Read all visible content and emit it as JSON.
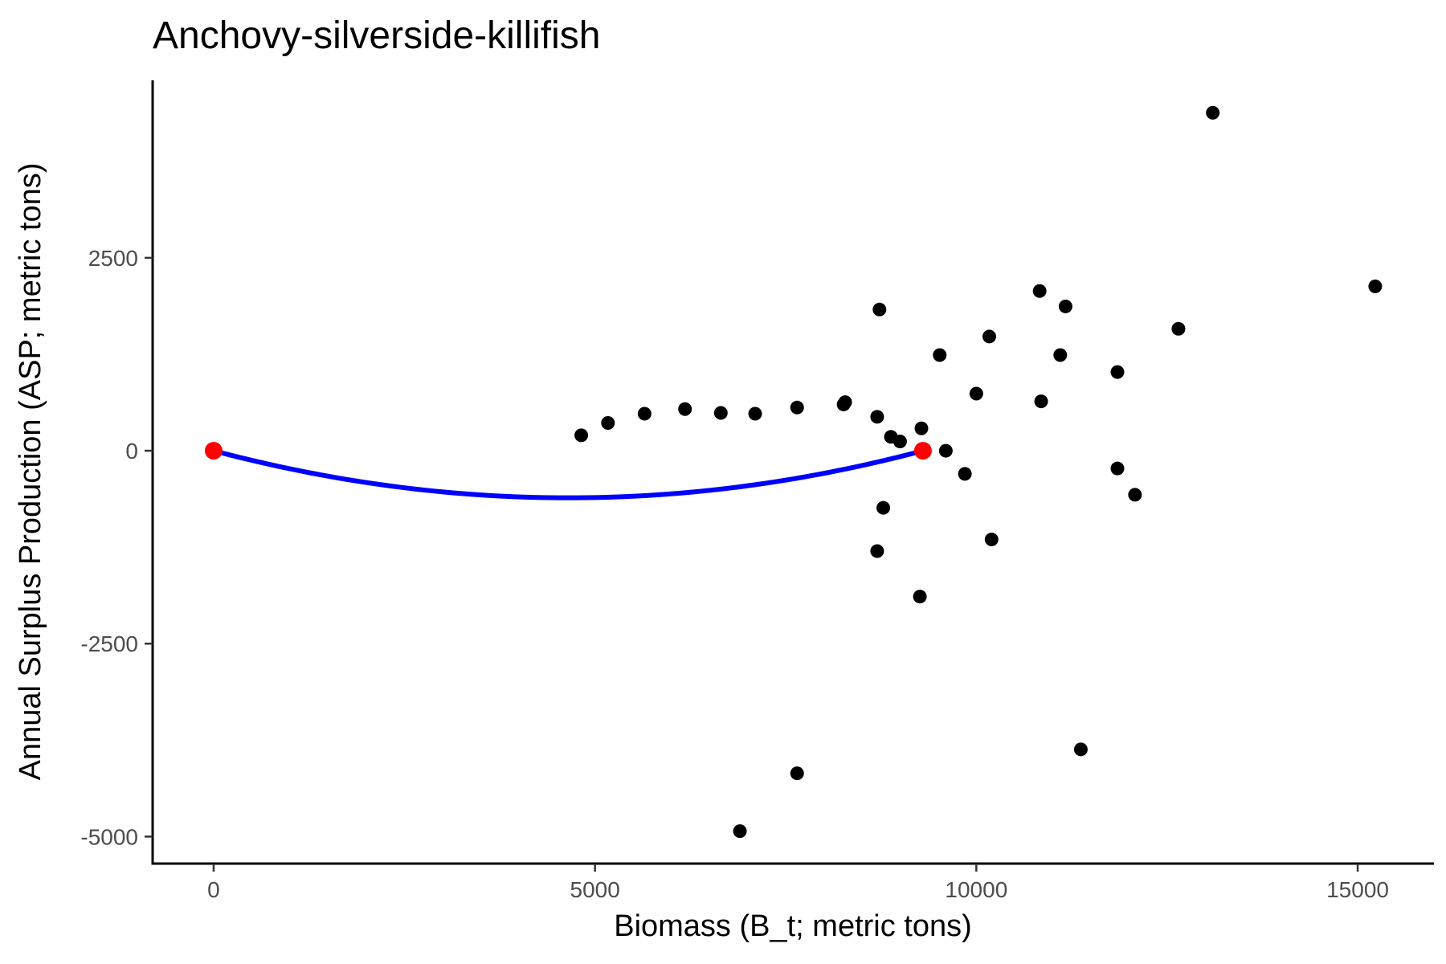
{
  "chart_data": {
    "type": "scatter",
    "title": "Anchovy-silverside-killifish",
    "xlabel": "Biomass (B_t; metric tons)",
    "ylabel": "Annual Surplus Production (ASP; metric tons)",
    "xlim": [
      -800,
      16000
    ],
    "ylim": [
      -5350,
      4800
    ],
    "x_ticks": [
      0,
      5000,
      10000,
      15000
    ],
    "x_tick_labels": [
      "0",
      "5000",
      "10000",
      "15000"
    ],
    "y_ticks": [
      -5000,
      -2500,
      0,
      2500
    ],
    "y_tick_labels": [
      "-5000",
      "-2500",
      "0",
      "2500"
    ],
    "grid": false,
    "colors": {
      "points": "#000000",
      "curve": "#0000ff",
      "endpoints": "#ff0000"
    },
    "points": [
      [
        4820,
        200
      ],
      [
        5170,
        360
      ],
      [
        5650,
        480
      ],
      [
        6180,
        540
      ],
      [
        6650,
        490
      ],
      [
        7100,
        480
      ],
      [
        7650,
        560
      ],
      [
        8260,
        600
      ],
      [
        8280,
        630
      ],
      [
        8700,
        440
      ],
      [
        8730,
        1830
      ],
      [
        8780,
        -740
      ],
      [
        8700,
        -1300
      ],
      [
        8880,
        180
      ],
      [
        9000,
        120
      ],
      [
        9280,
        290
      ],
      [
        9260,
        -1890
      ],
      [
        9600,
        0
      ],
      [
        9520,
        1240
      ],
      [
        9850,
        -300
      ],
      [
        10000,
        740
      ],
      [
        10170,
        1480
      ],
      [
        10200,
        -1150
      ],
      [
        10830,
        2070
      ],
      [
        10850,
        640
      ],
      [
        11100,
        1240
      ],
      [
        11170,
        1870
      ],
      [
        11370,
        -3870
      ],
      [
        11850,
        1020
      ],
      [
        11850,
        -230
      ],
      [
        12080,
        -570
      ],
      [
        12650,
        1580
      ],
      [
        13100,
        4380
      ],
      [
        15230,
        2130
      ],
      [
        6900,
        -4930
      ],
      [
        7650,
        -4180
      ]
    ],
    "curve": {
      "model": "parabola",
      "x_zero_1": 0,
      "x_zero_2": 9300,
      "min_y": -610
    },
    "endpoints": [
      [
        0,
        0
      ],
      [
        9300,
        0
      ]
    ]
  }
}
